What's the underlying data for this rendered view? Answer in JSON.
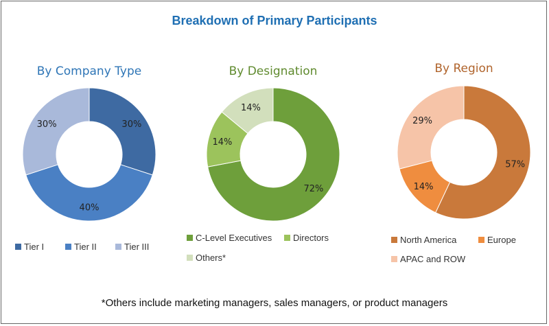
{
  "title": "Breakdown of Primary Participants",
  "footnote": "*Others include marketing managers, sales managers, or product managers",
  "chart_data": [
    {
      "type": "pie",
      "subtitle": "By Company Type",
      "subtitle_color": "#2e75b6",
      "categories": [
        "Tier I",
        "Tier II",
        "Tier III"
      ],
      "values": [
        30,
        40,
        30
      ],
      "labels": [
        "30%",
        "40%",
        "30%"
      ],
      "colors": [
        "#3e6aa2",
        "#4a80c4",
        "#a9b9da"
      ],
      "donut": true,
      "legend": "bottom"
    },
    {
      "type": "pie",
      "subtitle": "By Designation",
      "subtitle_color": "#5f8a2e",
      "categories": [
        "C-Level Executives",
        "Directors",
        "Others*"
      ],
      "values": [
        72,
        14,
        14
      ],
      "labels": [
        "72%",
        "14%",
        "14%"
      ],
      "colors": [
        "#6e9f3b",
        "#9cc35c",
        "#d2dfbc"
      ],
      "donut": true,
      "legend": "bottom"
    },
    {
      "type": "pie",
      "subtitle": "By Region",
      "subtitle_color": "#b0642c",
      "categories": [
        "North America",
        "Europe",
        "APAC and ROW"
      ],
      "values": [
        57,
        14,
        29
      ],
      "labels": [
        "57%",
        "14%",
        "29%"
      ],
      "colors": [
        "#c9793b",
        "#ef8d3f",
        "#f6c4a8"
      ],
      "donut": true,
      "legend": "bottom"
    }
  ]
}
